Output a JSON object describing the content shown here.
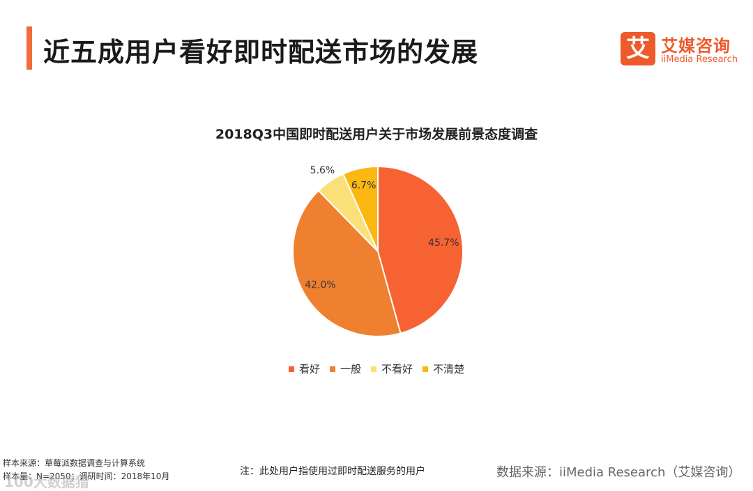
{
  "header": {
    "title": "近五成用户看好即时配送市场的发展",
    "accent_color": "#f26b3a"
  },
  "logo": {
    "mark": "艾",
    "name": "艾媒咨询",
    "subtitle": "iiMedia Research",
    "color": "#ee5a2c"
  },
  "chart_data": {
    "type": "pie",
    "title": "2018Q3中国即时配送用户关于市场发展前景态度调查",
    "slices": [
      {
        "label": "看好",
        "value": 45.7,
        "display": "45.7%",
        "color": "#f76233"
      },
      {
        "label": "一般",
        "value": 42.0,
        "display": "42.0%",
        "color": "#ee8030"
      },
      {
        "label": "不看好",
        "value": 5.6,
        "display": "5.6%",
        "color": "#fbe07a"
      },
      {
        "label": "不清楚",
        "value": 6.7,
        "display": "6.7%",
        "color": "#fbb812"
      }
    ],
    "start_angle_deg": 0,
    "direction": "clockwise",
    "legend_position": "bottom"
  },
  "footer": {
    "sample_source": "样本来源：草莓派数据调查与计算系统",
    "sample_size": "样本量：N=2050；调研时间：2018年10月",
    "note": "注：此处用户指使用过即时配送服务的用户",
    "data_source": "数据来源：iiMedia Research（艾媒咨询）",
    "watermark": "100大数据猎"
  }
}
